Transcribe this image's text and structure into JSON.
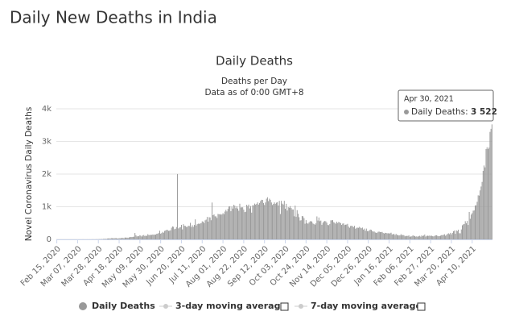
{
  "header": {
    "title": "Daily New Deaths in India"
  },
  "chart_data": {
    "type": "bar",
    "title": "Daily Deaths",
    "subtitle": [
      "Deaths per Day",
      "Data as of 0:00 GMT+8"
    ],
    "y_label": "Novel Coronavirus Daily Deaths",
    "ylim": [
      0,
      4000
    ],
    "yticks": [
      0,
      {
        "value": 1000,
        "label": "1k"
      },
      {
        "value": 2000,
        "label": "2k"
      },
      {
        "value": 3000,
        "label": "3k"
      },
      {
        "value": 4000,
        "label": "4k"
      }
    ],
    "grid": true,
    "categories": [
      "Feb 15, 2020",
      null,
      null,
      null,
      null,
      null,
      null,
      null,
      null,
      null,
      null,
      null,
      null,
      null,
      null,
      null,
      null,
      null,
      null,
      null,
      null,
      "Mar 07, 2020",
      null,
      null,
      null,
      null,
      null,
      null,
      null,
      null,
      null,
      null,
      null,
      null,
      null,
      null,
      null,
      null,
      null,
      null,
      null,
      null,
      "Mar 28, 2020",
      null,
      null,
      null,
      null,
      null,
      null,
      null,
      null,
      null,
      null,
      null,
      null,
      null,
      null,
      null,
      null,
      null,
      null,
      null,
      null,
      "Apr 18, 2020",
      null,
      null,
      null,
      null,
      null,
      null,
      null,
      null,
      null,
      null,
      null,
      null,
      null,
      null,
      null,
      null,
      null,
      null,
      null,
      null,
      "May 09, 2020",
      null,
      null,
      null,
      null,
      null,
      null,
      null,
      null,
      null,
      null,
      null,
      null,
      null,
      null,
      null,
      null,
      null,
      null,
      null,
      null,
      "May 30, 2020",
      null,
      null,
      null,
      null,
      null,
      null,
      null,
      null,
      null,
      null,
      null,
      null,
      null,
      null,
      null,
      null,
      null,
      null,
      null,
      null,
      "Jun 20, 2020",
      null,
      null,
      null,
      null,
      null,
      null,
      null,
      null,
      null,
      null,
      null,
      null,
      null,
      null,
      null,
      null,
      null,
      null,
      null,
      null,
      "Jul 11, 2020",
      null,
      null,
      null,
      null,
      null,
      null,
      null,
      null,
      null,
      null,
      null,
      null,
      null,
      null,
      null,
      null,
      null,
      null,
      null,
      null,
      "Aug 01, 2020",
      null,
      null,
      null,
      null,
      null,
      null,
      null,
      null,
      null,
      null,
      null,
      null,
      null,
      null,
      null,
      null,
      null,
      null,
      null,
      null,
      "Aug 22, 2020",
      null,
      null,
      null,
      null,
      null,
      null,
      null,
      null,
      null,
      null,
      null,
      null,
      null,
      null,
      null,
      null,
      null,
      null,
      null,
      null,
      "Sep 12, 2020",
      null,
      null,
      null,
      null,
      null,
      null,
      null,
      null,
      null,
      null,
      null,
      null,
      null,
      null,
      null,
      null,
      null,
      null,
      null,
      null,
      "Oct 03, 2020",
      null,
      null,
      null,
      null,
      null,
      null,
      null,
      null,
      null,
      null,
      null,
      null,
      null,
      null,
      null,
      null,
      null,
      null,
      null,
      null,
      "Oct 24, 2020",
      null,
      null,
      null,
      null,
      null,
      null,
      null,
      null,
      null,
      null,
      null,
      null,
      null,
      null,
      null,
      null,
      null,
      null,
      null,
      null,
      "Nov 14, 2020",
      null,
      null,
      null,
      null,
      null,
      null,
      null,
      null,
      null,
      null,
      null,
      null,
      null,
      null,
      null,
      null,
      null,
      null,
      null,
      null,
      "Dec 05, 2020",
      null,
      null,
      null,
      null,
      null,
      null,
      null,
      null,
      null,
      null,
      null,
      null,
      null,
      null,
      null,
      null,
      null,
      null,
      null,
      null,
      "Dec 26, 2020",
      null,
      null,
      null,
      null,
      null,
      null,
      null,
      null,
      null,
      null,
      null,
      null,
      null,
      null,
      null,
      null,
      null,
      null,
      null,
      null,
      "Jan 16, 2021",
      null,
      null,
      null,
      null,
      null,
      null,
      null,
      null,
      null,
      null,
      null,
      null,
      null,
      null,
      null,
      null,
      null,
      null,
      null,
      null,
      "Feb 06, 2021",
      null,
      null,
      null,
      null,
      null,
      null,
      null,
      null,
      null,
      null,
      null,
      null,
      null,
      null,
      null,
      null,
      null,
      null,
      null,
      null,
      "Feb 27, 2021",
      null,
      null,
      null,
      null,
      null,
      null,
      null,
      null,
      null,
      null,
      null,
      null,
      null,
      null,
      null,
      null,
      null,
      null,
      null,
      null,
      "Mar 20, 2021",
      null,
      null,
      null,
      null,
      null,
      null,
      null,
      null,
      null,
      null,
      null,
      null,
      null,
      null,
      null,
      null,
      null,
      null,
      null,
      null,
      "Apr 10, 2021",
      null,
      null,
      null,
      null,
      null,
      null,
      null,
      null,
      null,
      null,
      null,
      null,
      null,
      null,
      null,
      null,
      null,
      null,
      null,
      null
    ],
    "series": [
      {
        "name": "Daily Deaths",
        "color": "#999999",
        "values": [
          0,
          0,
          0,
          0,
          0,
          0,
          0,
          0,
          0,
          0,
          0,
          0,
          0,
          0,
          0,
          0,
          0,
          0,
          0,
          0,
          0,
          0,
          0,
          0,
          0,
          0,
          1,
          1,
          0,
          0,
          0,
          1,
          0,
          1,
          0,
          1,
          3,
          2,
          1,
          2,
          4,
          3,
          5,
          6,
          4,
          12,
          5,
          15,
          12,
          21,
          10,
          27,
          26,
          33,
          21,
          40,
          34,
          35,
          31,
          40,
          38,
          27,
          28,
          36,
          35,
          33,
          50,
          40,
          36,
          60,
          50,
          56,
          46,
          59,
          73,
          71,
          72,
          77,
          83,
          195,
          126,
          89,
          103,
          95,
          128,
          111,
          87,
          121,
          134,
          100,
          120,
          104,
          157,
          134,
          132,
          140,
          137,
          148,
          142,
          147,
          146,
          170,
          175,
          194,
          265,
          175,
          193,
          230,
          204,
          259,
          273,
          294,
          287,
          261,
          266,
          279,
          357,
          396,
          386,
          311,
          325,
          380,
          2003,
          336,
          364,
          375,
          445,
          306,
          465,
          418,
          410,
          381,
          384,
          418,
          410,
          507,
          380,
          434,
          382,
          442,
          613,
          425,
          467,
          482,
          475,
          487,
          500,
          553,
          543,
          500,
          584,
          606,
          687,
          543,
          681,
          671,
          587,
          1129,
          740,
          764,
          708,
          705,
          654,
          779,
          768,
          775,
          758,
          764,
          803,
          771,
          853,
          904,
          857,
          933,
          1007,
          1013,
          863,
          1006,
          942,
          1058,
          1032,
          957,
          1014,
          944,
          876,
          1092,
          977,
          983,
          983,
          912,
          836,
          848,
          1059,
          1021,
          1066,
          948,
          1021,
          819,
          1045,
          1043,
          1096,
          1065,
          1089,
          1133,
          1065,
          1115,
          1172,
          1213,
          1209,
          1114,
          1054,
          1131,
          1246,
          1290,
          1172,
          1247,
          1212,
          1130,
          1053,
          1085,
          1133,
          1089,
          1124,
          1141,
          1039,
          1179,
          776,
          1181,
          1095,
          1069,
          1181,
          940,
          1089,
          884,
          986,
          971,
          1021,
          964,
          918,
          916,
          707,
          1034,
          694,
          895,
          784,
          680,
          578,
          587,
          717,
          706,
          650,
          480,
          590,
          500,
          480,
          517,
          551,
          563,
          543,
          488,
          470,
          449,
          490,
          704,
          577,
          670,
          558,
          577,
          447,
          508,
          547,
          563,
          554,
          511,
          442,
          435,
          472,
          584,
          585,
          590,
          525,
          510,
          480,
          540,
          502,
          532,
          519,
          496,
          443,
          482,
          490,
          440,
          450,
          455,
          476,
          392,
          355,
          410,
          417,
          405,
          377,
          415,
          326,
          354,
          359,
          354,
          384,
          359,
          341,
          362,
          300,
          330,
          265,
          331,
          254,
          251,
          279,
          301,
          292,
          255,
          239,
          240,
          212,
          199,
          207,
          235,
          236,
          222,
          225,
          228,
          196,
          179,
          201,
          198,
          185,
          190,
          179,
          188,
          205,
          152,
          155,
          171,
          129,
          169,
          136,
          131,
          120,
          123,
          163,
          125,
          137,
          128,
          94,
          108,
          105,
          107,
          121,
          81,
          90,
          94,
          122,
          111,
          98,
          84,
          96,
          78,
          101,
          110,
          83,
          123,
          99,
          118,
          148,
          87,
          108,
          112,
          107,
          117,
          106,
          112,
          97,
          92,
          109,
          121,
          126,
          108,
          96,
          99,
          113,
          130,
          129,
          140,
          157,
          112,
          136,
          167,
          187,
          159,
          200,
          154,
          199,
          250,
          269,
          171,
          275,
          254,
          297,
          189,
          185,
          304,
          432,
          459,
          472,
          557,
          492,
          564,
          442,
          841,
          631,
          759,
          802,
          879,
          886,
          1038,
          1044,
          1151,
          1350,
          1341,
          1501,
          1620,
          1761,
          2099,
          2263,
          2206,
          2767,
          2822,
          2767,
          2812,
          3293,
          3386,
          3522
        ]
      }
    ],
    "legend_extra": [
      "3-day moving average",
      "7-day moving average"
    ],
    "tooltip": {
      "date": "Apr 30, 2021",
      "label": "Daily Deaths:",
      "value": "3 522"
    }
  }
}
